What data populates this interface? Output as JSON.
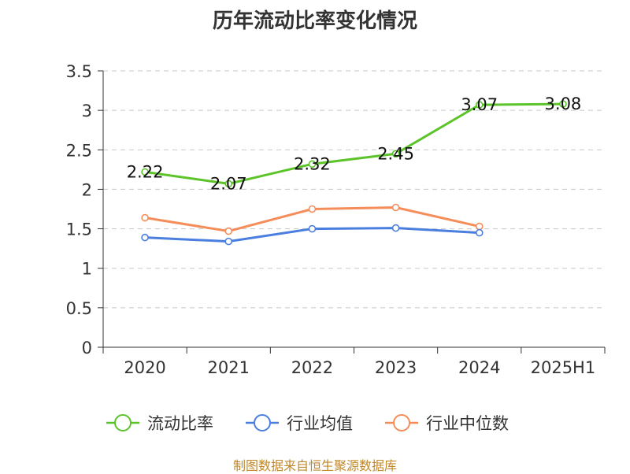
{
  "source_note": "制图数据来自恒生聚源数据库",
  "chart_data": {
    "type": "line",
    "title": "历年流动比率变化情况",
    "categories": [
      "2020",
      "2021",
      "2022",
      "2023",
      "2024",
      "2025H1"
    ],
    "ylim": [
      0,
      3.5
    ],
    "yticks": [
      "0",
      "0.5",
      "1",
      "1.5",
      "2",
      "2.5",
      "3",
      "3.5"
    ],
    "grid": true,
    "legend_position": "bottom",
    "series": [
      {
        "name": "流动比率",
        "color": "#5cc42a",
        "values": [
          2.22,
          2.07,
          2.32,
          2.45,
          3.07,
          3.08
        ],
        "labels": [
          "2.22",
          "2.07",
          "2.32",
          "2.45",
          "3.07",
          "3.08"
        ]
      },
      {
        "name": "行业均值",
        "color": "#4a7fe0",
        "values": [
          1.39,
          1.34,
          1.5,
          1.51,
          1.45,
          null
        ]
      },
      {
        "name": "行业中位数",
        "color": "#f58d5a",
        "values": [
          1.64,
          1.47,
          1.75,
          1.77,
          1.53,
          null
        ]
      }
    ]
  }
}
